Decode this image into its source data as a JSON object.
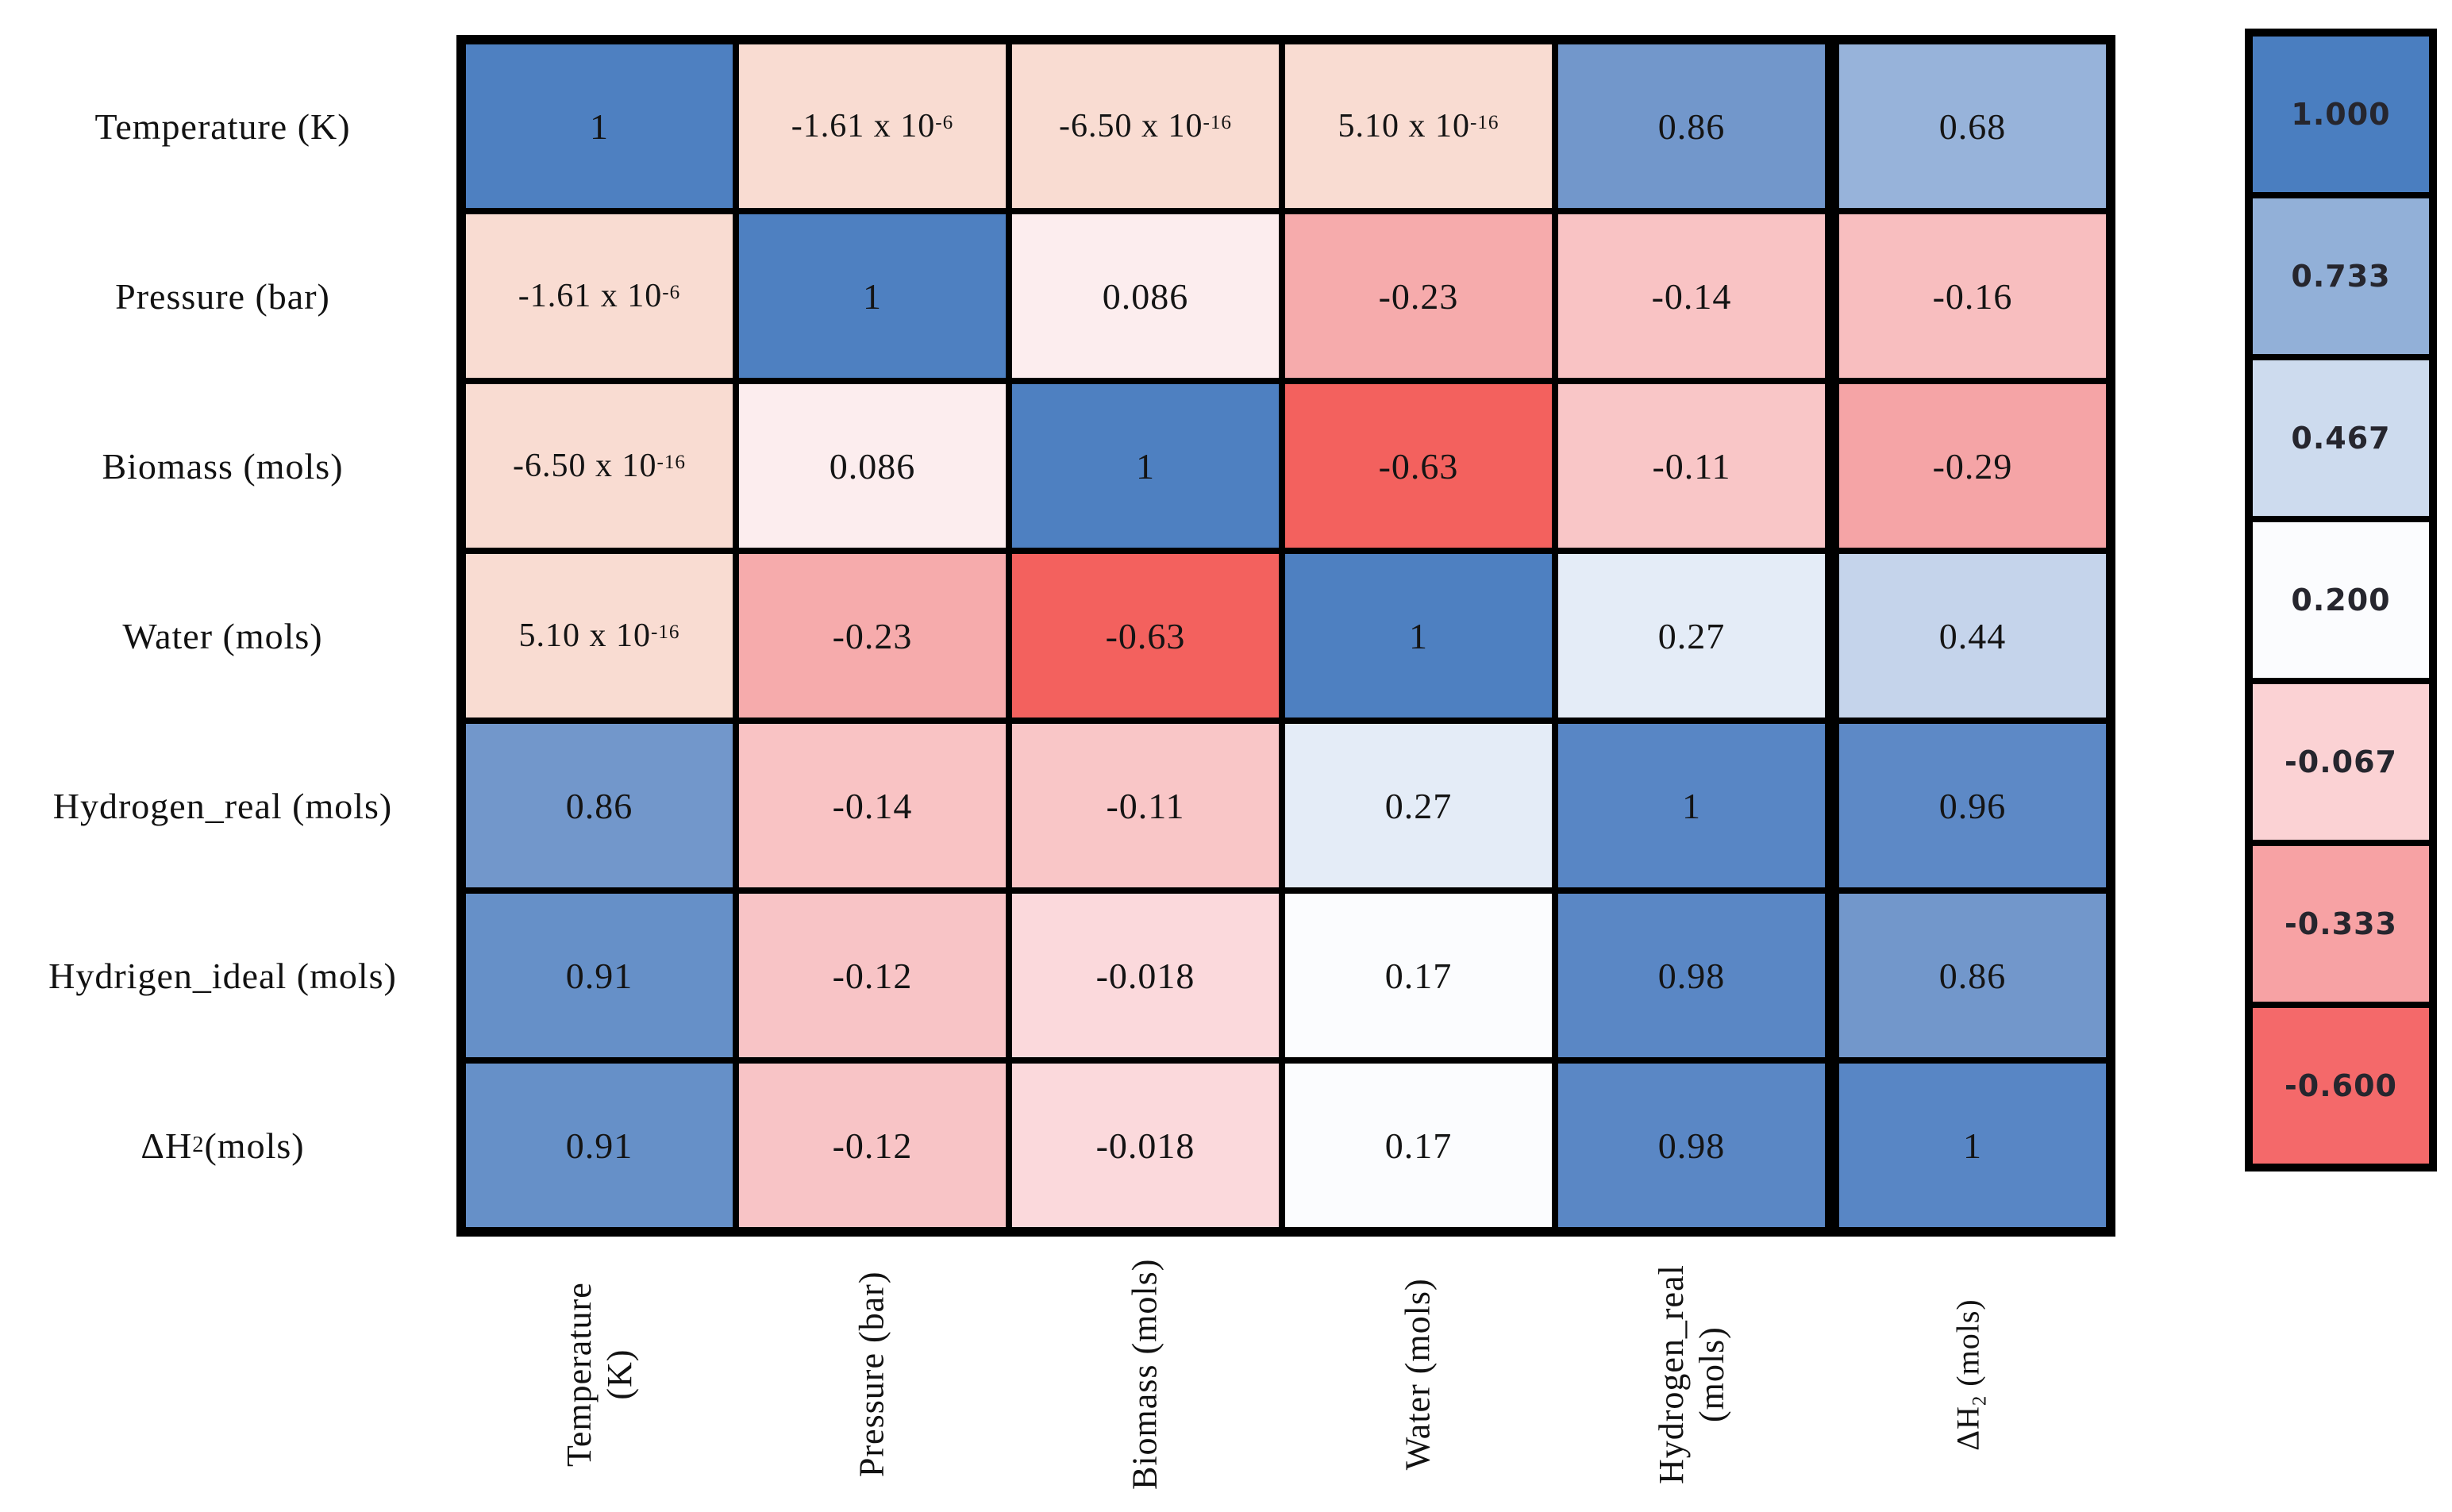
{
  "figure": {
    "kind": "correlation-matrix-heatmap",
    "background": "#ffffff",
    "grid_line_color": "#000000"
  },
  "chart_data": {
    "type": "heatmap",
    "title": "",
    "xlabel": "",
    "ylabel": "",
    "colormap": {
      "min": -0.6,
      "mid": 0.2,
      "max": 1.0,
      "min_color": "#f4696a",
      "mid_color": "#fbfcfe",
      "max_color": "#4a7ec0"
    },
    "row_labels": [
      "Temperature (K)",
      "Pressure (bar)",
      "Biomass (mols)",
      "Water (mols)",
      "Hydrogen_real (mols)",
      "Hydrigen_ideal (mols)",
      "ΔH_{2} (mols)"
    ],
    "col_labels": [
      {
        "lines": [
          "Temperature",
          "(K)"
        ],
        "small": false
      },
      {
        "lines": [
          "Pressure (bar)"
        ],
        "small": false
      },
      {
        "lines": [
          "Biomass (mols)"
        ],
        "small": false
      },
      {
        "lines": [
          "Water (mols)"
        ],
        "small": false
      },
      {
        "lines": [
          "Hydrogen_real",
          "(mols)"
        ],
        "small": false
      },
      {
        "lines": [
          "ΔH_{2} (mols)"
        ],
        "small": true
      }
    ],
    "cells": [
      [
        {
          "value": 1,
          "text": "1",
          "color": "#4e80c1"
        },
        {
          "value": -1.61e-06,
          "text": "-1.61 x 10^{-6}",
          "color": "#f9dcd2"
        },
        {
          "value": -6.5e-16,
          "text": "-6.50 x 10^{-16}",
          "color": "#f9dcd2"
        },
        {
          "value": 5.1e-16,
          "text": "5.10 x 10^{-16}",
          "color": "#f9dcd2"
        },
        {
          "value": 0.86,
          "text": "0.86",
          "color": "#7297cb"
        },
        {
          "value": 0.68,
          "text": "0.68",
          "color": "#97b3da"
        }
      ],
      [
        {
          "value": -1.61e-06,
          "text": "-1.61 x 10^{-6}",
          "color": "#f9dcd2"
        },
        {
          "value": 1,
          "text": "1",
          "color": "#4e80c1"
        },
        {
          "value": 0.086,
          "text": "0.086",
          "color": "#fcedee"
        },
        {
          "value": -0.23,
          "text": "-0.23",
          "color": "#f6abac"
        },
        {
          "value": -0.14,
          "text": "-0.14",
          "color": "#f9c3c4"
        },
        {
          "value": -0.16,
          "text": "-0.16",
          "color": "#f8bebf"
        }
      ],
      [
        {
          "value": -6.5e-16,
          "text": "-6.50 x 10^{-16}",
          "color": "#f9dcd2"
        },
        {
          "value": 0.086,
          "text": "0.086",
          "color": "#fcedee"
        },
        {
          "value": 1,
          "text": "1",
          "color": "#4e80c1"
        },
        {
          "value": -0.63,
          "text": "-0.63",
          "color": "#f3615e"
        },
        {
          "value": -0.11,
          "text": "-0.11",
          "color": "#f9c6c7"
        },
        {
          "value": -0.29,
          "text": "-0.29",
          "color": "#f5a4a6"
        }
      ],
      [
        {
          "value": 5.1e-16,
          "text": "5.10 x 10^{-16}",
          "color": "#f9dcd2"
        },
        {
          "value": -0.23,
          "text": "-0.23",
          "color": "#f6abac"
        },
        {
          "value": -0.63,
          "text": "-0.63",
          "color": "#f3615e"
        },
        {
          "value": 1,
          "text": "1",
          "color": "#4e80c1"
        },
        {
          "value": 0.27,
          "text": "0.27",
          "color": "#e4ecf7"
        },
        {
          "value": 0.44,
          "text": "0.44",
          "color": "#c5d4eb"
        }
      ],
      [
        {
          "value": 0.86,
          "text": "0.86",
          "color": "#7297cb"
        },
        {
          "value": -0.14,
          "text": "-0.14",
          "color": "#f9c3c4"
        },
        {
          "value": -0.11,
          "text": "-0.11",
          "color": "#f9c6c7"
        },
        {
          "value": 0.27,
          "text": "0.27",
          "color": "#e4ecf7"
        },
        {
          "value": 1,
          "text": "1",
          "color": "#5886c5"
        },
        {
          "value": 0.96,
          "text": "0.96",
          "color": "#5d89c6"
        }
      ],
      [
        {
          "value": 0.91,
          "text": "0.91",
          "color": "#6690c8"
        },
        {
          "value": -0.12,
          "text": "-0.12",
          "color": "#f8c4c6"
        },
        {
          "value": -0.018,
          "text": "-0.018",
          "color": "#fbd9dc"
        },
        {
          "value": 0.17,
          "text": "0.17",
          "color": "#fbfcfe"
        },
        {
          "value": 0.98,
          "text": "0.98",
          "color": "#5a87c5"
        },
        {
          "value": 0.86,
          "text": "0.86",
          "color": "#7297cb"
        }
      ],
      [
        {
          "value": 0.91,
          "text": "0.91",
          "color": "#6690c8"
        },
        {
          "value": -0.12,
          "text": "-0.12",
          "color": "#f8c4c6"
        },
        {
          "value": -0.018,
          "text": "-0.018",
          "color": "#fbd9dc"
        },
        {
          "value": 0.17,
          "text": "0.17",
          "color": "#fbfcfe"
        },
        {
          "value": 0.98,
          "text": "0.98",
          "color": "#5a87c5"
        },
        {
          "value": 1,
          "text": "1",
          "color": "#5886c5"
        }
      ]
    ],
    "legend": {
      "position": "right",
      "entries": [
        {
          "label": "1.000",
          "color": "#4a7ec0"
        },
        {
          "label": "0.733",
          "color": "#92b0d8"
        },
        {
          "label": "0.467",
          "color": "#cddbee"
        },
        {
          "label": "0.200",
          "color": "#fbfcfe"
        },
        {
          "label": "-0.067",
          "color": "#fbd2d4"
        },
        {
          "label": "-0.333",
          "color": "#f7a2a4"
        },
        {
          "label": "-0.600",
          "color": "#f4696a"
        }
      ]
    }
  }
}
